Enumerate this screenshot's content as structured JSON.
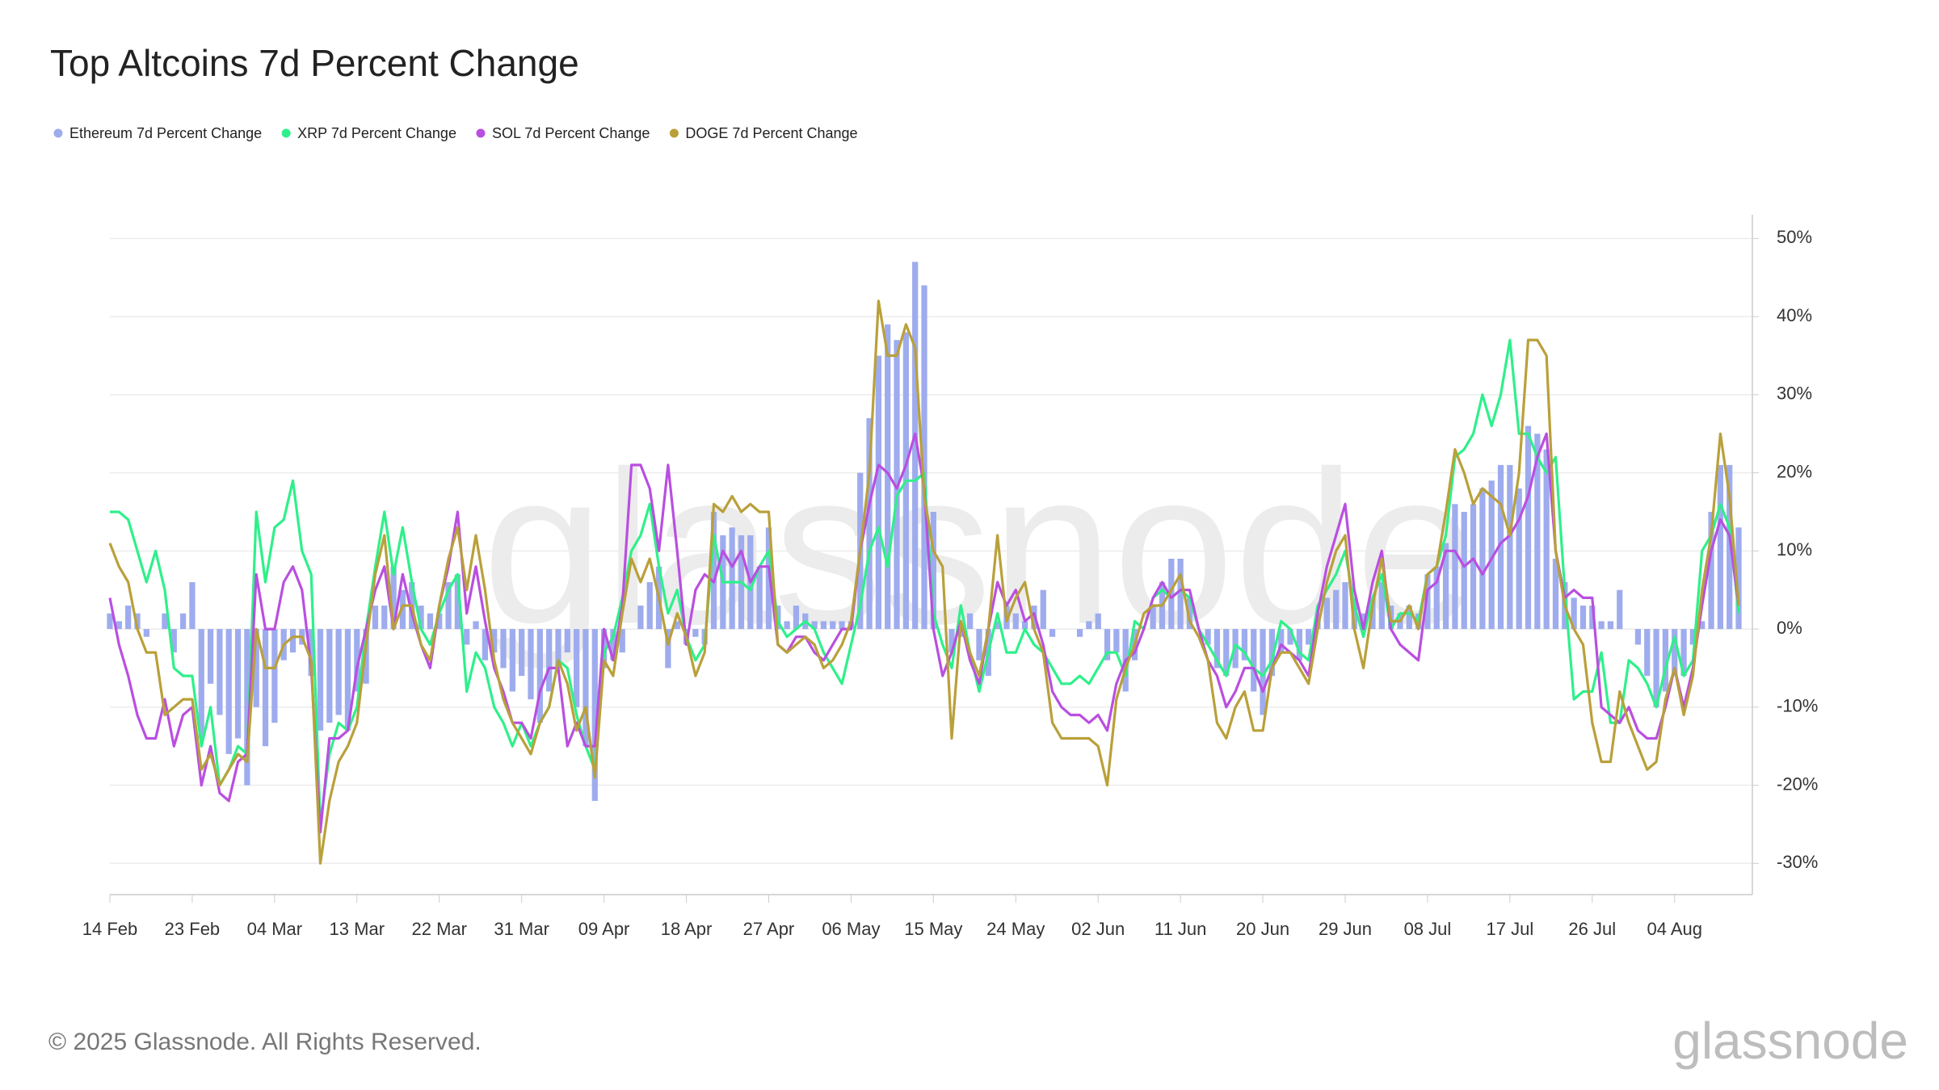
{
  "chart_data": {
    "type": "line",
    "title": "Top Altcoins 7d Percent Change",
    "footer": "© 2025 Glassnode. All Rights Reserved.",
    "logo": "glassnode",
    "categories": [
      "14 Feb",
      null,
      null,
      null,
      null,
      null,
      null,
      null,
      null,
      "23 Feb",
      null,
      null,
      null,
      null,
      null,
      null,
      null,
      null,
      "04 Mar",
      null,
      null,
      null,
      null,
      null,
      null,
      null,
      null,
      "13 Mar",
      null,
      null,
      null,
      null,
      null,
      null,
      null,
      null,
      "22 Mar",
      null,
      null,
      null,
      null,
      null,
      null,
      null,
      null,
      "31 Mar",
      null,
      null,
      null,
      null,
      null,
      null,
      null,
      null,
      "09 Apr",
      null,
      null,
      null,
      null,
      null,
      null,
      null,
      null,
      "18 Apr",
      null,
      null,
      null,
      null,
      null,
      null,
      null,
      null,
      "27 Apr",
      null,
      null,
      null,
      null,
      null,
      null,
      null,
      null,
      "06 May",
      null,
      null,
      null,
      null,
      null,
      null,
      null,
      null,
      "15 May",
      null,
      null,
      null,
      null,
      null,
      null,
      null,
      null,
      "24 May",
      null,
      null,
      null,
      null,
      null,
      null,
      null,
      null,
      "02 Jun",
      null,
      null,
      null,
      null,
      null,
      null,
      null,
      null,
      "11 Jun",
      null,
      null,
      null,
      null,
      null,
      null,
      null,
      null,
      "20 Jun",
      null,
      null,
      null,
      null,
      null,
      null,
      null,
      null,
      "29 Jun",
      null,
      null,
      null,
      null,
      null,
      null,
      null,
      null,
      "08 Jul",
      null,
      null,
      null,
      null,
      null,
      null,
      null,
      null,
      "17 Jul",
      null,
      null,
      null,
      null,
      null,
      null,
      null,
      null,
      "26 Jul",
      null,
      null,
      null,
      null,
      null,
      null,
      null,
      null,
      "04 Aug",
      null,
      null,
      null,
      null,
      null,
      null,
      null
    ],
    "series": [
      {
        "name": "Ethereum 7d Percent Change",
        "type": "bar",
        "color": "#9eacee",
        "values": [
          2,
          1,
          3,
          2,
          -1,
          0,
          2,
          -3,
          2,
          6,
          -14,
          -7,
          -11,
          -16,
          -14,
          -20,
          -10,
          -15,
          -12,
          -4,
          -3,
          -2,
          -6,
          -13,
          -12,
          -11,
          -13,
          -8,
          -7,
          3,
          3,
          8,
          5,
          6,
          3,
          2,
          2,
          6,
          7,
          -2,
          1,
          -4,
          -3,
          -5,
          -8,
          -6,
          -9,
          -12,
          -8,
          -5,
          -3,
          -10,
          -15,
          -22,
          -5,
          -4,
          -3,
          0,
          3,
          6,
          8,
          -5,
          1,
          -2,
          -1,
          -2,
          15,
          12,
          13,
          12,
          12,
          8,
          13,
          3,
          1,
          3,
          2,
          1,
          1,
          1,
          1,
          1,
          20,
          27,
          35,
          39,
          37,
          38,
          47,
          44,
          15,
          0,
          -3,
          -1,
          2,
          -4,
          -6,
          1,
          3,
          2,
          1,
          3,
          5,
          -1,
          0,
          0,
          -1,
          1,
          2,
          -4,
          -3,
          -8,
          -4,
          0,
          3,
          6,
          9,
          9,
          4,
          0,
          -2,
          -5,
          -6,
          -5,
          -4,
          -8,
          -11,
          -6,
          -3,
          -2,
          -4,
          -2,
          2,
          4,
          5,
          6,
          4,
          2,
          4,
          6,
          3,
          2,
          3,
          2,
          7,
          8,
          11,
          16,
          15,
          16,
          18,
          19,
          21,
          21,
          18,
          26,
          25,
          23,
          9,
          6,
          4,
          3,
          3,
          1,
          1,
          5,
          0,
          -2,
          -6,
          -10,
          -8,
          -6,
          -6,
          -2,
          1,
          15,
          21,
          21,
          13
        ]
      },
      {
        "name": "XRP 7d Percent Change",
        "type": "line",
        "color": "#2ef08a",
        "values": [
          15,
          15,
          14,
          10,
          6,
          10,
          5,
          -5,
          -6,
          -6,
          -15,
          -10,
          -20,
          -18,
          -15,
          -16,
          15,
          6,
          13,
          14,
          19,
          10,
          7,
          -25,
          -16,
          -12,
          -13,
          -10,
          0,
          8,
          15,
          7,
          13,
          6,
          0,
          -2,
          2,
          5,
          7,
          -8,
          -3,
          -5,
          -10,
          -12,
          -15,
          -12,
          -15,
          -12,
          -10,
          -4,
          -5,
          -11,
          -15,
          -18,
          -3,
          -1,
          4,
          10,
          12,
          16,
          8,
          2,
          5,
          -1,
          -4,
          -2,
          12,
          6,
          6,
          6,
          5,
          8,
          10,
          1,
          -1,
          0,
          1,
          0,
          -3,
          -5,
          -7,
          -2,
          3,
          10,
          13,
          8,
          17,
          19,
          19,
          20,
          2,
          -2,
          -5,
          3,
          -3,
          -8,
          -3,
          2,
          -3,
          -3,
          0,
          -2,
          -3,
          -5,
          -7,
          -7,
          -6,
          -7,
          -5,
          -3,
          -3,
          -6,
          1,
          0,
          4,
          5,
          4,
          5,
          4,
          0,
          -2,
          -4,
          -6,
          -2,
          -3,
          -5,
          -6,
          -4,
          1,
          0,
          -3,
          -4,
          3,
          5,
          7,
          10,
          3,
          -1,
          4,
          7,
          0,
          2,
          2,
          1,
          7,
          8,
          12,
          22,
          23,
          25,
          30,
          26,
          30,
          37,
          25,
          25,
          22,
          20,
          22,
          5,
          -9,
          -8,
          -8,
          -3,
          -12,
          -12,
          -4,
          -5,
          -7,
          -10,
          -5,
          -1,
          -6,
          -4,
          10,
          12,
          16,
          13,
          2
        ]
      },
      {
        "name": "SOL 7d Percent Change",
        "type": "line",
        "color": "#b94fe0",
        "values": [
          4,
          -2,
          -6,
          -11,
          -14,
          -14,
          -9,
          -15,
          -11,
          -10,
          -20,
          -15,
          -21,
          -22,
          -17,
          -16,
          7,
          0,
          0,
          6,
          8,
          5,
          -5,
          -26,
          -14,
          -14,
          -13,
          -5,
          0,
          5,
          8,
          0,
          7,
          2,
          -2,
          -5,
          3,
          8,
          15,
          2,
          8,
          1,
          -5,
          -8,
          -12,
          -12,
          -14,
          -8,
          -5,
          -5,
          -15,
          -12,
          -15,
          -15,
          0,
          -4,
          3,
          21,
          21,
          18,
          10,
          21,
          10,
          -2,
          5,
          7,
          6,
          10,
          8,
          10,
          6,
          8,
          8,
          -2,
          -3,
          -1,
          -1,
          -3,
          -4,
          -2,
          0,
          0,
          10,
          16,
          21,
          20,
          18,
          21,
          25,
          18,
          0,
          -6,
          -3,
          1,
          -4,
          -7,
          0,
          6,
          3,
          5,
          1,
          2,
          -2,
          -8,
          -10,
          -11,
          -11,
          -12,
          -11,
          -13,
          -7,
          -4,
          -3,
          0,
          4,
          6,
          4,
          5,
          5,
          0,
          -4,
          -6,
          -10,
          -8,
          -5,
          -5,
          -8,
          -5,
          -2,
          -3,
          -4,
          -6,
          2,
          8,
          12,
          16,
          5,
          0,
          6,
          10,
          0,
          -2,
          -3,
          -4,
          5,
          6,
          10,
          10,
          8,
          9,
          7,
          9,
          11,
          12,
          14,
          17,
          22,
          25,
          10,
          4,
          5,
          4,
          4,
          -10,
          -11,
          -12,
          -10,
          -13,
          -14,
          -14,
          -10,
          -5,
          -10,
          -5,
          3,
          10,
          14,
          12,
          3
        ]
      },
      {
        "name": "DOGE 7d Percent Change",
        "type": "line",
        "color": "#b9a03a",
        "values": [
          11,
          8,
          6,
          0,
          -3,
          -3,
          -11,
          -10,
          -9,
          -9,
          -18,
          -16,
          -20,
          -18,
          -16,
          -17,
          0,
          -5,
          -5,
          -2,
          -1,
          -1,
          -4,
          -30,
          -22,
          -17,
          -15,
          -12,
          -2,
          7,
          12,
          0,
          3,
          3,
          -2,
          -4,
          3,
          9,
          13,
          5,
          12,
          5,
          -4,
          -9,
          -12,
          -14,
          -16,
          -12,
          -10,
          -4,
          -7,
          -13,
          -10,
          -19,
          -4,
          -6,
          2,
          9,
          6,
          9,
          4,
          -2,
          2,
          -1,
          -6,
          -3,
          16,
          15,
          17,
          15,
          16,
          15,
          15,
          -2,
          -3,
          -2,
          -1,
          -2,
          -5,
          -4,
          -2,
          1,
          10,
          20,
          42,
          35,
          35,
          39,
          36,
          17,
          10,
          8,
          -14,
          1,
          -3,
          -6,
          0,
          12,
          1,
          4,
          6,
          0,
          -3,
          -12,
          -14,
          -14,
          -14,
          -14,
          -15,
          -20,
          -9,
          -5,
          -2,
          2,
          3,
          3,
          5,
          7,
          1,
          -1,
          -4,
          -12,
          -14,
          -10,
          -8,
          -13,
          -13,
          -5,
          -3,
          -3,
          -5,
          -7,
          0,
          6,
          10,
          12,
          0,
          -5,
          3,
          9,
          1,
          1,
          3,
          0,
          7,
          8,
          15,
          23,
          20,
          16,
          18,
          17,
          16,
          12,
          20,
          37,
          37,
          35,
          10,
          3,
          0,
          -2,
          -12,
          -17,
          -17,
          -8,
          -12,
          -15,
          -18,
          -17,
          -9,
          -5,
          -11,
          -6,
          5,
          12,
          25,
          17,
          3
        ]
      }
    ],
    "ylim": [
      -34,
      52
    ],
    "yticks": [
      {
        "value": -30,
        "label": "-30%"
      },
      {
        "value": -20,
        "label": "-20%"
      },
      {
        "value": -10,
        "label": "-10%"
      },
      {
        "value": 0,
        "label": "0%"
      },
      {
        "value": 10,
        "label": "10%"
      },
      {
        "value": 20,
        "label": "20%"
      },
      {
        "value": 30,
        "label": "30%"
      },
      {
        "value": 40,
        "label": "40%"
      },
      {
        "value": 50,
        "label": "50%"
      }
    ],
    "grid": true
  }
}
